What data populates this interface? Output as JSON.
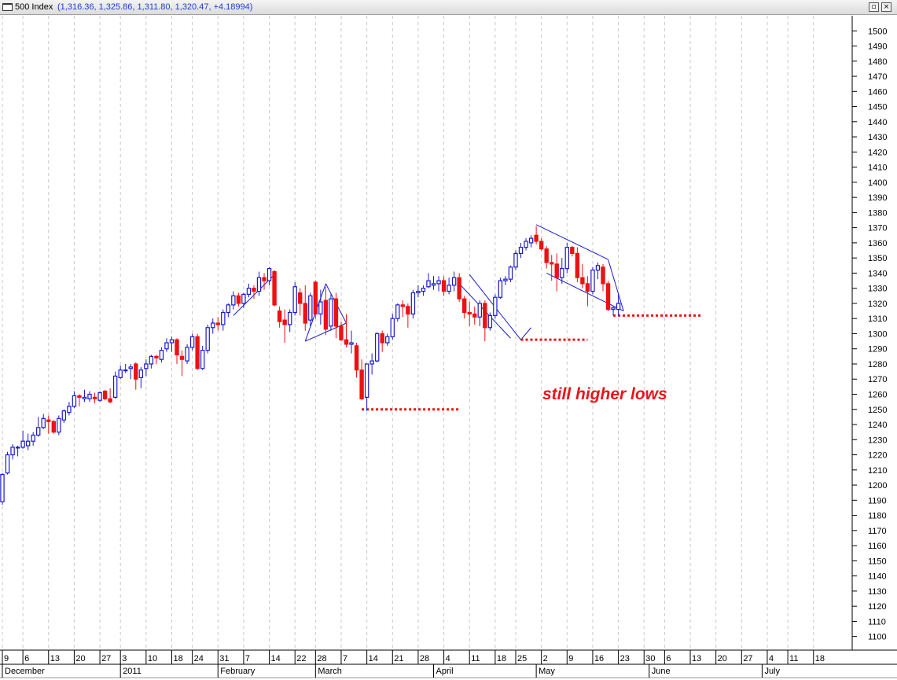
{
  "header": {
    "name": "500 Index",
    "ohlc": "(1,316.36, 1,325.86, 1,311.80, 1,320.47, +4.18994)",
    "restore_label": "▫",
    "close_label": "×"
  },
  "annotation": {
    "text": "still higher lows"
  },
  "colors": {
    "up": "#1a1acc",
    "down": "#ee1111",
    "grid": "#c8c8c8",
    "trend": "#1a1acc"
  },
  "chart_data": {
    "type": "candlestick",
    "ylim": [
      1091,
      1510
    ],
    "y_ticks": [
      1100,
      1110,
      1120,
      1130,
      1140,
      1150,
      1160,
      1170,
      1180,
      1190,
      1200,
      1210,
      1220,
      1230,
      1240,
      1250,
      1260,
      1270,
      1280,
      1290,
      1300,
      1310,
      1320,
      1330,
      1340,
      1350,
      1360,
      1370,
      1380,
      1390,
      1400,
      1410,
      1420,
      1430,
      1440,
      1450,
      1460,
      1470,
      1480,
      1490,
      1500
    ],
    "x_day_labels": [
      {
        "idx": 0,
        "label": "9"
      },
      {
        "idx": 4,
        "label": "6"
      },
      {
        "idx": 9,
        "label": "13"
      },
      {
        "idx": 14,
        "label": "20"
      },
      {
        "idx": 19,
        "label": "27"
      },
      {
        "idx": 23,
        "label": "3"
      },
      {
        "idx": 28,
        "label": "10"
      },
      {
        "idx": 33,
        "label": "18"
      },
      {
        "idx": 37,
        "label": "24"
      },
      {
        "idx": 42,
        "label": "31"
      },
      {
        "idx": 47,
        "label": "7"
      },
      {
        "idx": 52,
        "label": "14"
      },
      {
        "idx": 57,
        "label": "22"
      },
      {
        "idx": 61,
        "label": "28"
      },
      {
        "idx": 66,
        "label": "7"
      },
      {
        "idx": 71,
        "label": "14"
      },
      {
        "idx": 76,
        "label": "21"
      },
      {
        "idx": 81,
        "label": "28"
      },
      {
        "idx": 86,
        "label": "4"
      },
      {
        "idx": 91,
        "label": "11"
      },
      {
        "idx": 96,
        "label": "18"
      },
      {
        "idx": 100,
        "label": "25"
      },
      {
        "idx": 105,
        "label": "2"
      },
      {
        "idx": 110,
        "label": "9"
      },
      {
        "idx": 115,
        "label": "16"
      },
      {
        "idx": 120,
        "label": "23"
      },
      {
        "idx": 125,
        "label": "30"
      },
      {
        "idx": 129,
        "label": "6"
      },
      {
        "idx": 134,
        "label": "13"
      },
      {
        "idx": 139,
        "label": "20"
      },
      {
        "idx": 144,
        "label": "27"
      },
      {
        "idx": 149,
        "label": "4"
      },
      {
        "idx": 153,
        "label": "11"
      },
      {
        "idx": 158,
        "label": "18"
      }
    ],
    "x_month_labels": [
      {
        "idx": 0,
        "label": "December"
      },
      {
        "idx": 23,
        "label": "2011"
      },
      {
        "idx": 42,
        "label": "February"
      },
      {
        "idx": 61,
        "label": "March"
      },
      {
        "idx": 84,
        "label": "April"
      },
      {
        "idx": 104,
        "label": "May"
      },
      {
        "idx": 126,
        "label": "June"
      },
      {
        "idx": 148,
        "label": "July"
      }
    ],
    "candles": [
      [
        1189,
        1208,
        1187,
        1207
      ],
      [
        1208,
        1222,
        1207,
        1220
      ],
      [
        1220,
        1227,
        1217,
        1225
      ],
      [
        1225,
        1226,
        1219,
        1225
      ],
      [
        1225,
        1236,
        1224,
        1229
      ],
      [
        1226,
        1234,
        1223,
        1229
      ],
      [
        1229,
        1235,
        1226,
        1233
      ],
      [
        1233,
        1245,
        1232,
        1238
      ],
      [
        1238,
        1247,
        1237,
        1244
      ],
      [
        1243,
        1246,
        1234,
        1242
      ],
      [
        1242,
        1243,
        1234,
        1235
      ],
      [
        1235,
        1246,
        1233,
        1244
      ],
      [
        1243,
        1250,
        1241,
        1249
      ],
      [
        1248,
        1255,
        1246,
        1252
      ],
      [
        1252,
        1262,
        1251,
        1259
      ],
      [
        1259,
        1260,
        1252,
        1258
      ],
      [
        1257,
        1263,
        1255,
        1258
      ],
      [
        1257,
        1262,
        1255,
        1260
      ],
      [
        1258,
        1261,
        1254,
        1257
      ],
      [
        1256,
        1262,
        1255,
        1261
      ],
      [
        1262,
        1263,
        1256,
        1257
      ],
      [
        1257,
        1264,
        1254,
        1255
      ],
      [
        1258,
        1275,
        1257,
        1272
      ],
      [
        1271,
        1279,
        1270,
        1276
      ],
      [
        1276,
        1280,
        1274,
        1276
      ],
      [
        1277,
        1280,
        1270,
        1278
      ],
      [
        1280,
        1281,
        1263,
        1270
      ],
      [
        1271,
        1278,
        1264,
        1276
      ],
      [
        1277,
        1283,
        1272,
        1280
      ],
      [
        1280,
        1286,
        1277,
        1285
      ],
      [
        1285,
        1286,
        1280,
        1284
      ],
      [
        1283,
        1291,
        1281,
        1289
      ],
      [
        1290,
        1297,
        1288,
        1294
      ],
      [
        1294,
        1298,
        1288,
        1296
      ],
      [
        1296,
        1297,
        1280,
        1286
      ],
      [
        1285,
        1289,
        1272,
        1283
      ],
      [
        1282,
        1293,
        1280,
        1291
      ],
      [
        1291,
        1300,
        1289,
        1298
      ],
      [
        1298,
        1300,
        1276,
        1277
      ],
      [
        1277,
        1292,
        1276,
        1289
      ],
      [
        1289,
        1306,
        1287,
        1304
      ],
      [
        1304,
        1310,
        1300,
        1307
      ],
      [
        1307,
        1311,
        1302,
        1306
      ],
      [
        1306,
        1316,
        1302,
        1314
      ],
      [
        1314,
        1320,
        1311,
        1319
      ],
      [
        1319,
        1328,
        1316,
        1325
      ],
      [
        1325,
        1327,
        1318,
        1320
      ],
      [
        1320,
        1327,
        1317,
        1326
      ],
      [
        1326,
        1333,
        1324,
        1330
      ],
      [
        1330,
        1332,
        1323,
        1328
      ],
      [
        1328,
        1341,
        1325,
        1337
      ],
      [
        1337,
        1340,
        1329,
        1335
      ],
      [
        1335,
        1344,
        1332,
        1343
      ],
      [
        1341,
        1342,
        1318,
        1319
      ],
      [
        1315,
        1318,
        1304,
        1308
      ],
      [
        1309,
        1316,
        1294,
        1306
      ],
      [
        1306,
        1316,
        1301,
        1314
      ],
      [
        1314,
        1334,
        1312,
        1331
      ],
      [
        1327,
        1330,
        1312,
        1320
      ],
      [
        1320,
        1332,
        1302,
        1307
      ],
      [
        1309,
        1327,
        1305,
        1325
      ],
      [
        1334,
        1335,
        1310,
        1313
      ],
      [
        1313,
        1329,
        1306,
        1321
      ],
      [
        1322,
        1331,
        1299,
        1303
      ],
      [
        1305,
        1326,
        1302,
        1323
      ],
      [
        1323,
        1327,
        1297,
        1305
      ],
      [
        1305,
        1308,
        1295,
        1296
      ],
      [
        1296,
        1313,
        1291,
        1293
      ],
      [
        1293,
        1302,
        1287,
        1294
      ],
      [
        1292,
        1294,
        1271,
        1276
      ],
      [
        1276,
        1283,
        1256,
        1257
      ],
      [
        1258,
        1280,
        1249,
        1280
      ],
      [
        1280,
        1287,
        1273,
        1282
      ],
      [
        1282,
        1301,
        1281,
        1300
      ],
      [
        1300,
        1302,
        1288,
        1294
      ],
      [
        1294,
        1300,
        1292,
        1298
      ],
      [
        1298,
        1313,
        1296,
        1310
      ],
      [
        1310,
        1320,
        1308,
        1319
      ],
      [
        1319,
        1322,
        1311,
        1318
      ],
      [
        1318,
        1320,
        1304,
        1313
      ],
      [
        1313,
        1329,
        1310,
        1327
      ],
      [
        1327,
        1332,
        1324,
        1328
      ],
      [
        1328,
        1332,
        1325,
        1330
      ],
      [
        1331,
        1340,
        1330,
        1335
      ],
      [
        1332,
        1338,
        1329,
        1333
      ],
      [
        1333,
        1338,
        1328,
        1335
      ],
      [
        1335,
        1338,
        1325,
        1328
      ],
      [
        1328,
        1337,
        1326,
        1332
      ],
      [
        1332,
        1341,
        1328,
        1337
      ],
      [
        1337,
        1340,
        1321,
        1323
      ],
      [
        1323,
        1325,
        1310,
        1314
      ],
      [
        1314,
        1321,
        1305,
        1313
      ],
      [
        1313,
        1318,
        1306,
        1311
      ],
      [
        1311,
        1322,
        1305,
        1320
      ],
      [
        1320,
        1322,
        1295,
        1304
      ],
      [
        1304,
        1314,
        1302,
        1312
      ],
      [
        1312,
        1326,
        1310,
        1324
      ],
      [
        1324,
        1337,
        1323,
        1335
      ],
      [
        1335,
        1338,
        1332,
        1336
      ],
      [
        1336,
        1345,
        1334,
        1344
      ],
      [
        1344,
        1355,
        1342,
        1353
      ],
      [
        1353,
        1360,
        1350,
        1357
      ],
      [
        1357,
        1363,
        1355,
        1361
      ],
      [
        1360,
        1365,
        1357,
        1363
      ],
      [
        1365,
        1371,
        1359,
        1361
      ],
      [
        1361,
        1363,
        1355,
        1356
      ],
      [
        1356,
        1358,
        1343,
        1347
      ],
      [
        1347,
        1352,
        1335,
        1346
      ],
      [
        1346,
        1353,
        1328,
        1337
      ],
      [
        1337,
        1350,
        1333,
        1343
      ],
      [
        1343,
        1360,
        1340,
        1357
      ],
      [
        1357,
        1358,
        1351,
        1353
      ],
      [
        1353,
        1357,
        1334,
        1337
      ],
      [
        1337,
        1346,
        1330,
        1333
      ],
      [
        1333,
        1338,
        1318,
        1328
      ],
      [
        1328,
        1344,
        1326,
        1342
      ],
      [
        1342,
        1347,
        1336,
        1345
      ],
      [
        1344,
        1346,
        1328,
        1333
      ],
      [
        1333,
        1335,
        1315,
        1316
      ],
      [
        1316,
        1318,
        1312,
        1317
      ],
      [
        1316,
        1326,
        1312,
        1320
      ]
    ],
    "trendlines": [
      {
        "a": [
          45,
          1312
        ],
        "b": [
          53,
          1339
        ]
      },
      {
        "a": [
          59,
          1295
        ],
        "b": [
          63,
          1333
        ]
      },
      {
        "a": [
          59,
          1295
        ],
        "b": [
          67,
          1307
        ]
      },
      {
        "a": [
          63,
          1333
        ],
        "b": [
          67,
          1307
        ]
      },
      {
        "a": [
          91,
          1339
        ],
        "b": [
          101,
          1296
        ]
      },
      {
        "a": [
          89,
          1333
        ],
        "b": [
          99,
          1297
        ]
      },
      {
        "a": [
          101,
          1296
        ],
        "b": [
          103,
          1304
        ]
      },
      {
        "a": [
          104,
          1372
        ],
        "b": [
          118,
          1349
        ]
      },
      {
        "a": [
          106,
          1340
        ],
        "b": [
          121,
          1315
        ]
      },
      {
        "a": [
          118,
          1349
        ],
        "b": [
          121,
          1315
        ]
      }
    ],
    "support_lines": [
      {
        "x0": 70,
        "x1": 89,
        "y": 1250
      },
      {
        "x0": 101,
        "x1": 114,
        "y": 1296
      },
      {
        "x0": 119,
        "x1": 136,
        "y": 1312
      }
    ]
  }
}
